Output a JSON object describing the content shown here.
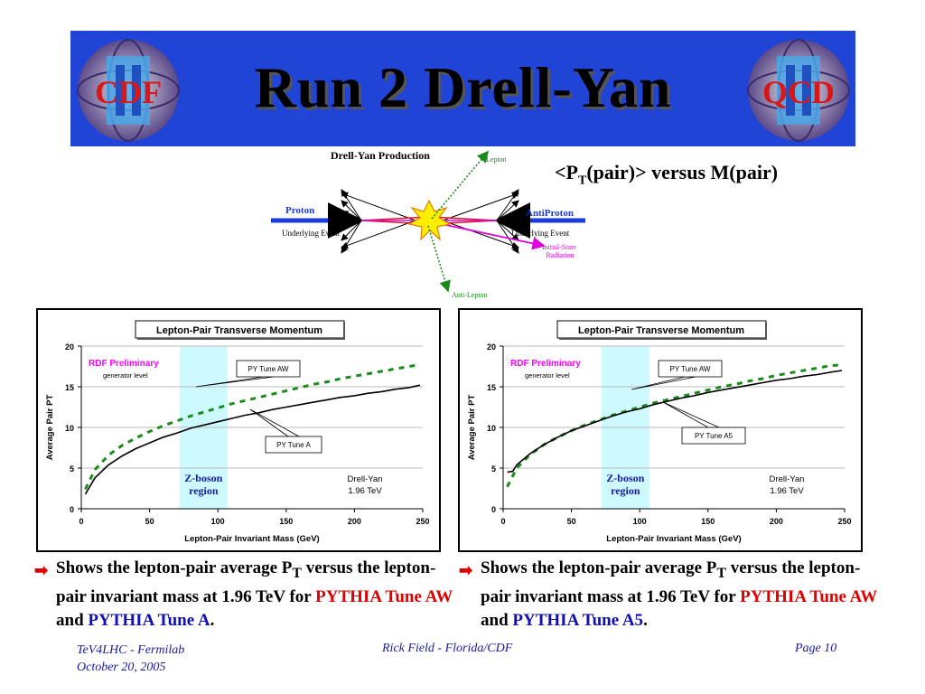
{
  "banner": {
    "title": "Run 2 Drell-Yan",
    "logo_left_text": "CDF",
    "logo_right_text": "QCD",
    "bg_color": "#1f44d6"
  },
  "diagram": {
    "title": "Drell-Yan Production",
    "lepton": "Lepton",
    "anti_lepton": "Anti-Lepton",
    "proton": "Proton",
    "antiproton": "AntiProton",
    "underlying_left": "Underlying Event",
    "underlying_right": "Underlying Event",
    "isr_line1": "Initial-State",
    "isr_line2": "Radiation"
  },
  "subtitle": {
    "prefix": "<P",
    "sub": "T",
    "suffix": "(pair)> versus M(pair)"
  },
  "chart_data": [
    {
      "type": "line",
      "title": "Lepton-Pair Transverse Momentum",
      "xlabel": "Lepton-Pair Invariant Mass  (GeV)",
      "ylabel": "Average Pair PT",
      "xlim": [
        0,
        250
      ],
      "ylim": [
        0,
        20
      ],
      "xticks": [
        0,
        50,
        100,
        150,
        200,
        250
      ],
      "yticks": [
        0,
        5,
        10,
        15,
        20
      ],
      "grid": "horizontal",
      "preliminary_label": "RDF Preliminary",
      "generator_label": "generator level",
      "band_label_line1": "Z-boson",
      "band_label_line2": "region",
      "band_range": [
        72,
        107
      ],
      "info_line1": "Drell-Yan",
      "info_line2": "1.96 TeV",
      "series": [
        {
          "name": "PY Tune AW",
          "style": "dashed",
          "color": "#1a8a1a",
          "points": [
            [
              3,
              2.4
            ],
            [
              10,
              4.8
            ],
            [
              20,
              6.6
            ],
            [
              30,
              7.8
            ],
            [
              40,
              8.7
            ],
            [
              50,
              9.5
            ],
            [
              60,
              10.2
            ],
            [
              70,
              10.8
            ],
            [
              80,
              11.4
            ],
            [
              90,
              11.9
            ],
            [
              100,
              12.4
            ],
            [
              110,
              12.9
            ],
            [
              120,
              13.3
            ],
            [
              130,
              13.7
            ],
            [
              140,
              14.1
            ],
            [
              150,
              14.5
            ],
            [
              160,
              14.9
            ],
            [
              170,
              15.3
            ],
            [
              180,
              15.6
            ],
            [
              190,
              16.0
            ],
            [
              200,
              16.3
            ],
            [
              210,
              16.6
            ],
            [
              220,
              16.9
            ],
            [
              230,
              17.2
            ],
            [
              240,
              17.5
            ],
            [
              248,
              17.7
            ]
          ]
        },
        {
          "name": "PY Tune A",
          "style": "solid",
          "color": "#000000",
          "points": [
            [
              3,
              1.8
            ],
            [
              10,
              3.8
            ],
            [
              20,
              5.4
            ],
            [
              30,
              6.5
            ],
            [
              40,
              7.4
            ],
            [
              50,
              8.1
            ],
            [
              60,
              8.8
            ],
            [
              70,
              9.3
            ],
            [
              80,
              9.9
            ],
            [
              90,
              10.3
            ],
            [
              100,
              10.7
            ],
            [
              110,
              11.1
            ],
            [
              120,
              11.5
            ],
            [
              130,
              11.8
            ],
            [
              140,
              12.2
            ],
            [
              150,
              12.5
            ],
            [
              160,
              12.8
            ],
            [
              170,
              13.1
            ],
            [
              180,
              13.4
            ],
            [
              190,
              13.7
            ],
            [
              200,
              13.9
            ],
            [
              210,
              14.2
            ],
            [
              220,
              14.4
            ],
            [
              230,
              14.7
            ],
            [
              240,
              14.9
            ],
            [
              248,
              15.2
            ]
          ]
        }
      ],
      "callouts": [
        "PY Tune AW",
        "PY Tune A"
      ]
    },
    {
      "type": "line",
      "title": "Lepton-Pair Transverse Momentum",
      "xlabel": "Lepton-Pair Invariant Mass  (GeV)",
      "ylabel": "Average Pair PT",
      "xlim": [
        0,
        250
      ],
      "ylim": [
        0,
        20
      ],
      "xticks": [
        0,
        50,
        100,
        150,
        200,
        250
      ],
      "yticks": [
        0,
        5,
        10,
        15,
        20
      ],
      "grid": "horizontal",
      "preliminary_label": "RDF Preliminary",
      "generator_label": "generator level",
      "band_label_line1": "Z-boson",
      "band_label_line2": "region",
      "band_range": [
        72,
        107
      ],
      "info_line1": "Drell-Yan",
      "info_line2": "1.96 TeV",
      "series": [
        {
          "name": "PY Tune AW",
          "style": "dashed",
          "color": "#1a8a1a",
          "points": [
            [
              3,
              2.7
            ],
            [
              10,
              5.0
            ],
            [
              20,
              6.7
            ],
            [
              30,
              7.9
            ],
            [
              40,
              8.8
            ],
            [
              50,
              9.6
            ],
            [
              60,
              10.3
            ],
            [
              70,
              10.9
            ],
            [
              80,
              11.5
            ],
            [
              90,
              12.0
            ],
            [
              100,
              12.5
            ],
            [
              110,
              13.0
            ],
            [
              120,
              13.4
            ],
            [
              130,
              13.8
            ],
            [
              140,
              14.2
            ],
            [
              150,
              14.6
            ],
            [
              160,
              15.0
            ],
            [
              170,
              15.3
            ],
            [
              180,
              15.7
            ],
            [
              190,
              16.0
            ],
            [
              200,
              16.4
            ],
            [
              210,
              16.7
            ],
            [
              220,
              17.0
            ],
            [
              230,
              17.3
            ],
            [
              240,
              17.6
            ],
            [
              248,
              17.7
            ]
          ]
        },
        {
          "name": "PY Tune A5",
          "style": "solid",
          "color": "#000000",
          "points": [
            [
              3,
              4.5
            ],
            [
              7,
              4.6
            ],
            [
              10,
              5.4
            ],
            [
              20,
              6.8
            ],
            [
              30,
              7.9
            ],
            [
              40,
              8.8
            ],
            [
              50,
              9.6
            ],
            [
              60,
              10.2
            ],
            [
              70,
              10.8
            ],
            [
              80,
              11.4
            ],
            [
              90,
              11.9
            ],
            [
              100,
              12.3
            ],
            [
              110,
              12.8
            ],
            [
              120,
              13.2
            ],
            [
              130,
              13.6
            ],
            [
              140,
              13.9
            ],
            [
              150,
              14.3
            ],
            [
              160,
              14.6
            ],
            [
              170,
              14.9
            ],
            [
              180,
              15.2
            ],
            [
              190,
              15.5
            ],
            [
              200,
              15.8
            ],
            [
              210,
              16.0
            ],
            [
              220,
              16.3
            ],
            [
              230,
              16.5
            ],
            [
              240,
              16.8
            ],
            [
              248,
              17.0
            ]
          ]
        }
      ],
      "callouts": [
        "PY Tune AW",
        "PY Tune A5"
      ]
    }
  ],
  "bullets": [
    {
      "text1": "Shows the lepton-pair average P",
      "sub": "T",
      "text2": " versus the lepton-pair invariant mass at 1.96 TeV for",
      "red": "PYTHIA Tune AW",
      "and": " and ",
      "blue": "PYTHIA Tune A",
      "end": "."
    },
    {
      "text1": "Shows the lepton-pair average P",
      "sub": "T",
      "text2": " versus the lepton-pair invariant mass at 1.96 TeV for",
      "red": "PYTHIA Tune AW",
      "and": " and ",
      "blue": "PYTHIA Tune A5",
      "end": "."
    }
  ],
  "footer": {
    "left1": "TeV4LHC - Fermilab",
    "left2": "October 20, 2005",
    "mid": "Rick Field - Florida/CDF",
    "right": "Page 10"
  }
}
